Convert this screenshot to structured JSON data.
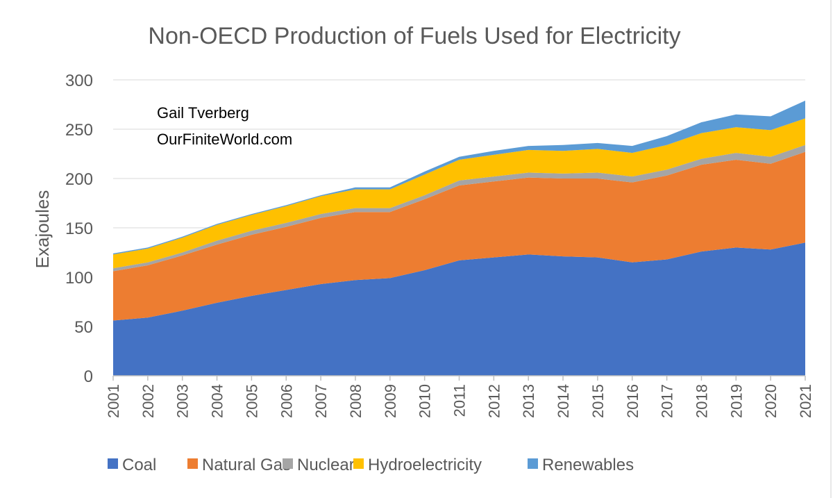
{
  "chart_data": {
    "type": "area",
    "stacked": true,
    "title": "Non-OECD Production of Fuels Used for Electricity",
    "ylabel": "Exajoules",
    "xlabel": "",
    "ylim": [
      0,
      300
    ],
    "yticks": [
      0,
      50,
      100,
      150,
      200,
      250,
      300
    ],
    "grid": true,
    "legend_position": "bottom",
    "categories": [
      "2001",
      "2002",
      "2003",
      "2004",
      "2005",
      "2006",
      "2007",
      "2008",
      "2009",
      "2010",
      "2011",
      "2012",
      "2013",
      "2014",
      "2015",
      "2016",
      "2017",
      "2018",
      "2019",
      "2020",
      "2021"
    ],
    "series": [
      {
        "name": "Coal",
        "color": "#4472C4",
        "values": [
          56,
          59,
          66,
          74,
          81,
          87,
          93,
          97,
          99,
          107,
          117,
          120,
          123,
          121,
          120,
          115,
          118,
          126,
          130,
          128,
          135
        ]
      },
      {
        "name": "Natural Gas",
        "color": "#ED7D31",
        "values": [
          50,
          53,
          56,
          59,
          62,
          64,
          67,
          69,
          67,
          72,
          76,
          77,
          78,
          79,
          80,
          81,
          85,
          88,
          89,
          87,
          92
        ]
      },
      {
        "name": "Nuclear",
        "color": "#A5A5A5",
        "values": [
          3,
          3,
          3,
          4,
          4,
          4,
          4,
          4,
          4,
          4,
          5,
          5,
          5,
          5,
          6,
          6,
          6,
          6,
          7,
          7,
          7
        ]
      },
      {
        "name": "Hydroelectricity",
        "color": "#FFC000",
        "values": [
          14,
          14,
          15,
          16,
          16,
          17,
          18,
          19,
          19,
          21,
          21,
          22,
          23,
          23,
          24,
          24,
          25,
          26,
          26,
          27,
          27
        ]
      },
      {
        "name": "Renewables",
        "color": "#5B9BD5",
        "values": [
          1,
          1,
          1,
          1,
          1,
          1,
          1,
          2,
          2,
          3,
          3,
          4,
          4,
          6,
          6,
          7,
          9,
          11,
          13,
          14,
          18
        ]
      }
    ],
    "annotations": [
      "Gail Tverberg",
      "OurFiniteWorld.com"
    ]
  }
}
